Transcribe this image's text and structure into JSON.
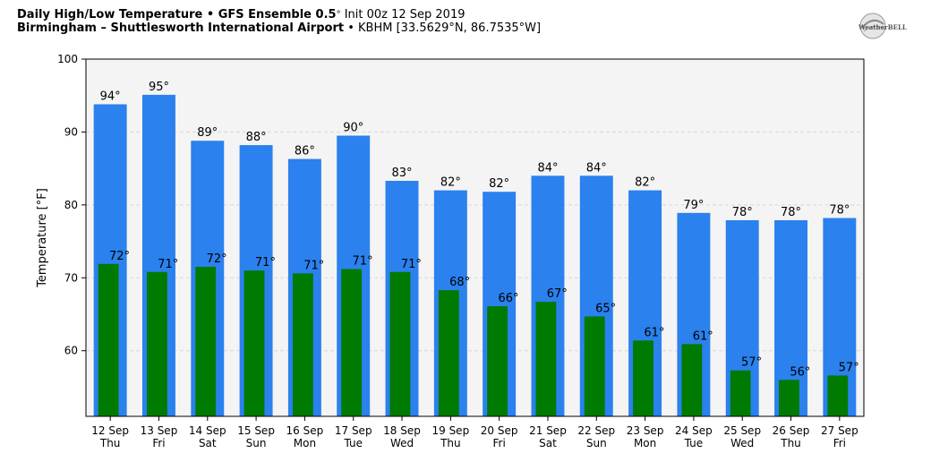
{
  "header": {
    "title_bold": "Daily High/Low Temperature • GFS Ensemble 0.5",
    "title_deg": "°",
    "title_rest": " Init 00z 12 Sep 2019",
    "location_bold": "Birmingham – Shuttlesworth International Airport",
    "location_rest": " • KBHM [33.5629°N, 86.7535°W]"
  },
  "logo": {
    "text": "WeatherBELL",
    "icon": "weatherbell-swirl-logo"
  },
  "colors": {
    "high": "#2b81ed",
    "low": "#007a00",
    "plot_bg": "#f4f4f4",
    "grid": "#d8d8d8"
  },
  "chart_data": {
    "type": "bar",
    "ylabel": "Temperature [°F]",
    "ylim": [
      51,
      100
    ],
    "yticks": [
      60,
      70,
      80,
      90,
      100
    ],
    "grid": true,
    "categories": [
      {
        "date": "12 Sep",
        "day": "Thu"
      },
      {
        "date": "13 Sep",
        "day": "Fri"
      },
      {
        "date": "14 Sep",
        "day": "Sat"
      },
      {
        "date": "15 Sep",
        "day": "Sun"
      },
      {
        "date": "16 Sep",
        "day": "Mon"
      },
      {
        "date": "17 Sep",
        "day": "Tue"
      },
      {
        "date": "18 Sep",
        "day": "Wed"
      },
      {
        "date": "19 Sep",
        "day": "Thu"
      },
      {
        "date": "20 Sep",
        "day": "Fri"
      },
      {
        "date": "21 Sep",
        "day": "Sat"
      },
      {
        "date": "22 Sep",
        "day": "Sun"
      },
      {
        "date": "23 Sep",
        "day": "Mon"
      },
      {
        "date": "24 Sep",
        "day": "Tue"
      },
      {
        "date": "25 Sep",
        "day": "Wed"
      },
      {
        "date": "26 Sep",
        "day": "Thu"
      },
      {
        "date": "27 Sep",
        "day": "Fri"
      }
    ],
    "series": [
      {
        "key": "high",
        "values": [
          93.8,
          95.1,
          88.8,
          88.2,
          86.3,
          89.5,
          83.3,
          82.0,
          81.8,
          84.0,
          84.0,
          82.0,
          78.9,
          77.9,
          77.9,
          78.2
        ],
        "labels": [
          "94°",
          "95°",
          "89°",
          "88°",
          "86°",
          "90°",
          "83°",
          "82°",
          "82°",
          "84°",
          "84°",
          "82°",
          "79°",
          "78°",
          "78°",
          "78°"
        ]
      },
      {
        "key": "low",
        "values": [
          71.9,
          70.8,
          71.5,
          71.0,
          70.6,
          71.2,
          70.8,
          68.3,
          66.1,
          66.7,
          64.7,
          61.4,
          60.9,
          57.3,
          56.0,
          56.6
        ],
        "labels": [
          "72°",
          "71°",
          "72°",
          "71°",
          "71°",
          "71°",
          "71°",
          "68°",
          "66°",
          "67°",
          "65°",
          "61°",
          "61°",
          "57°",
          "56°",
          "57°"
        ]
      }
    ]
  }
}
